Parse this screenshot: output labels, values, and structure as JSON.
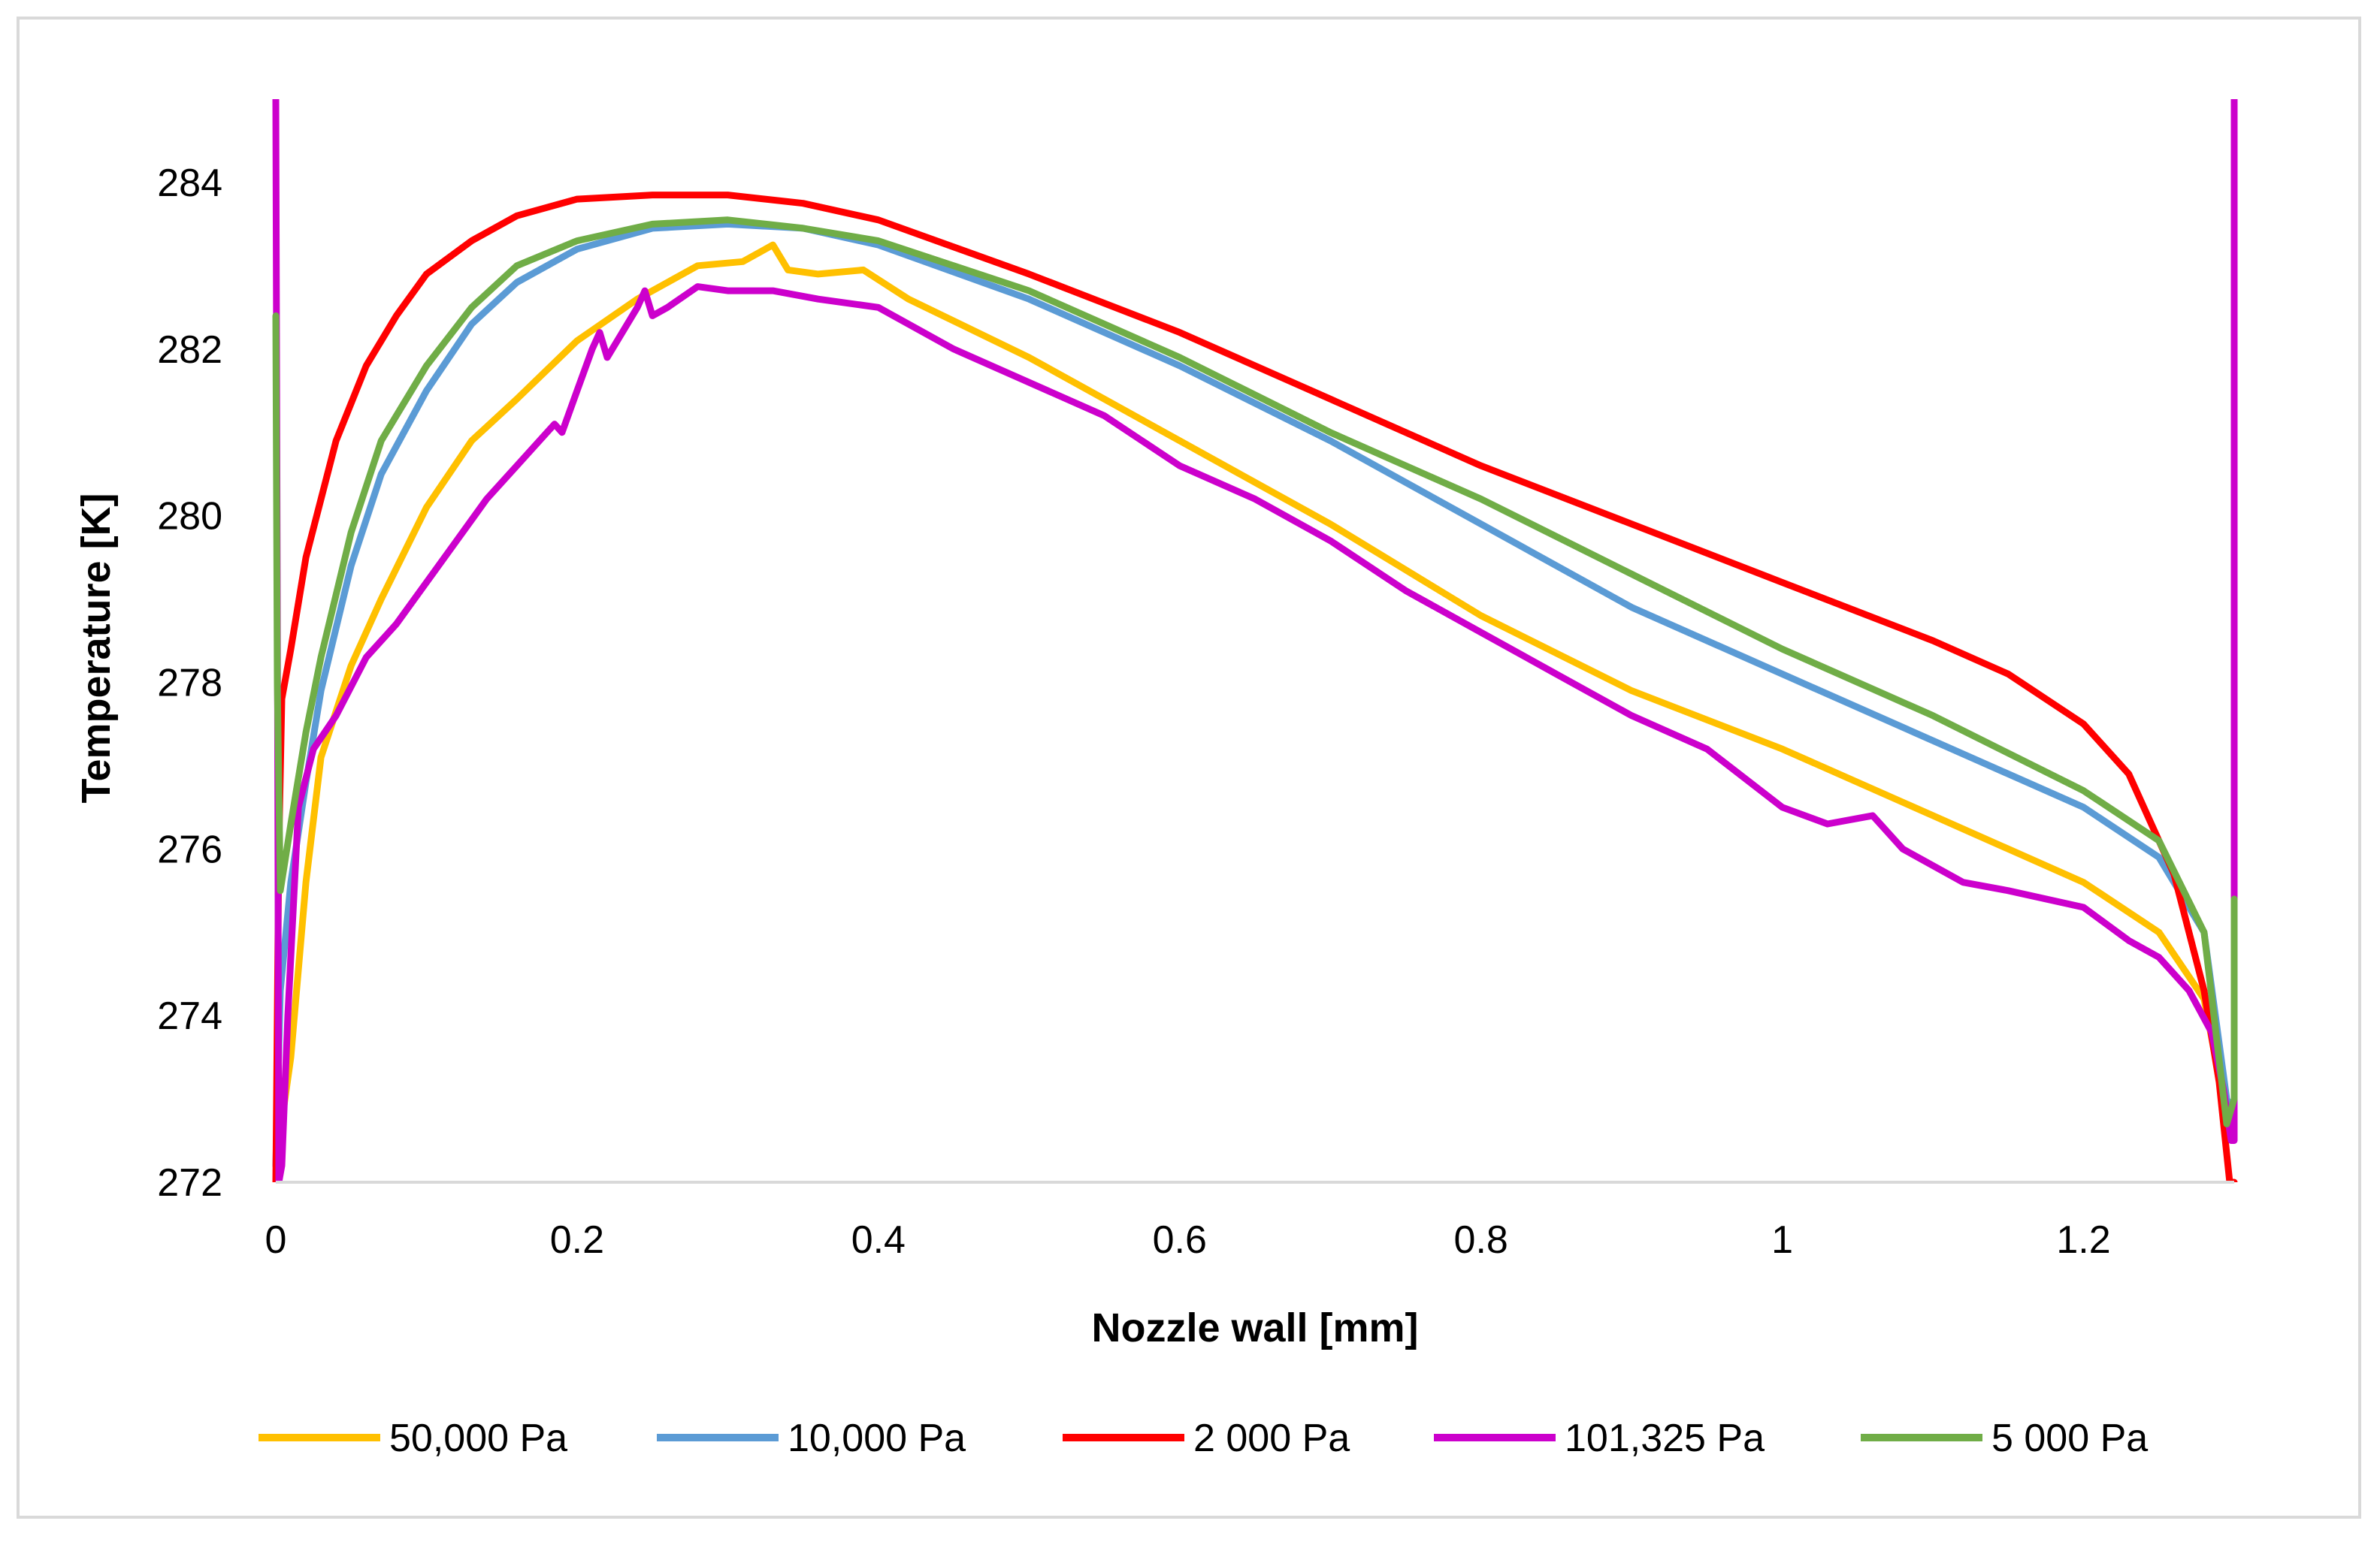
{
  "chart_data": {
    "type": "line",
    "title": "",
    "xlabel": "Nozzle wall [mm]",
    "ylabel": "Temperature [K]",
    "xlim": [
      0,
      1.3
    ],
    "ylim": [
      272,
      285
    ],
    "grid": false,
    "legend_position": "bottom",
    "x_ticks": [
      0,
      0.2,
      0.4,
      0.6,
      0.8,
      1.0,
      1.2
    ],
    "x_tick_labels": [
      "0",
      "0.2",
      "0.4",
      "0.6",
      "0.8",
      "1",
      "1.2"
    ],
    "y_ticks": [
      272,
      274,
      276,
      278,
      280,
      282,
      284
    ],
    "y_tick_labels": [
      "272",
      "274",
      "276",
      "278",
      "280",
      "282",
      "284"
    ],
    "series": [
      {
        "name": "50,000 Pa",
        "color": "#FFC000",
        "x": [
          0.0,
          0.003,
          0.01,
          0.02,
          0.03,
          0.05,
          0.07,
          0.1,
          0.13,
          0.16,
          0.2,
          0.24,
          0.28,
          0.31,
          0.33,
          0.34,
          0.36,
          0.39,
          0.42,
          0.5,
          0.6,
          0.7,
          0.8,
          0.9,
          1.0,
          1.1,
          1.2,
          1.25,
          1.28,
          1.295,
          1.3
        ],
        "y": [
          272.2,
          272.6,
          273.5,
          275.6,
          277.1,
          278.2,
          279.0,
          280.1,
          280.9,
          281.4,
          282.1,
          282.6,
          283.0,
          283.05,
          283.25,
          282.95,
          282.9,
          282.95,
          282.6,
          281.9,
          280.9,
          279.9,
          278.8,
          277.9,
          277.2,
          276.4,
          275.6,
          275.0,
          274.2,
          272.8,
          272.8
        ]
      },
      {
        "name": "10,000 Pa",
        "color": "#5B9BD5",
        "x": [
          0.0,
          0.003,
          0.01,
          0.02,
          0.03,
          0.05,
          0.07,
          0.1,
          0.13,
          0.16,
          0.2,
          0.25,
          0.3,
          0.35,
          0.4,
          0.5,
          0.6,
          0.7,
          0.8,
          0.9,
          1.0,
          1.1,
          1.2,
          1.25,
          1.28,
          1.295,
          1.3
        ],
        "y": [
          272.2,
          274.3,
          275.6,
          276.8,
          277.9,
          279.4,
          280.5,
          281.5,
          282.3,
          282.8,
          283.2,
          283.45,
          283.5,
          283.45,
          283.25,
          282.6,
          281.8,
          280.9,
          279.9,
          278.9,
          278.1,
          277.3,
          276.5,
          275.9,
          275.0,
          273.0,
          272.8
        ]
      },
      {
        "name": "2 000 Pa",
        "color": "#FF0000",
        "x": [
          0.0,
          0.002,
          0.004,
          0.01,
          0.02,
          0.04,
          0.06,
          0.08,
          0.1,
          0.13,
          0.16,
          0.2,
          0.25,
          0.3,
          0.35,
          0.4,
          0.5,
          0.6,
          0.7,
          0.8,
          0.9,
          1.0,
          1.1,
          1.15,
          1.2,
          1.23,
          1.26,
          1.28,
          1.29,
          1.297,
          1.3
        ],
        "y": [
          272.0,
          276.0,
          277.8,
          278.4,
          279.5,
          280.9,
          281.8,
          282.4,
          282.9,
          283.3,
          283.6,
          283.8,
          283.85,
          283.85,
          283.75,
          283.55,
          282.9,
          282.2,
          281.4,
          280.6,
          279.9,
          279.2,
          278.5,
          278.1,
          277.5,
          276.9,
          275.7,
          274.3,
          273.2,
          272.0,
          272.0
        ]
      },
      {
        "name": "101,325 Pa",
        "color": "#CC00CC",
        "x": [
          0.0,
          0.001,
          0.002,
          0.004,
          0.008,
          0.015,
          0.025,
          0.04,
          0.06,
          0.08,
          0.1,
          0.12,
          0.14,
          0.16,
          0.17,
          0.18,
          0.185,
          0.19,
          0.2,
          0.21,
          0.215,
          0.22,
          0.23,
          0.24,
          0.245,
          0.25,
          0.26,
          0.28,
          0.3,
          0.33,
          0.36,
          0.4,
          0.45,
          0.5,
          0.55,
          0.6,
          0.65,
          0.7,
          0.75,
          0.8,
          0.85,
          0.9,
          0.95,
          1.0,
          1.03,
          1.06,
          1.08,
          1.12,
          1.15,
          1.2,
          1.23,
          1.25,
          1.27,
          1.285,
          1.293,
          1.298,
          1.3,
          1.3
        ],
        "y": [
          285.0,
          279.0,
          272.0,
          272.2,
          274.0,
          276.5,
          277.2,
          277.6,
          278.3,
          278.7,
          279.2,
          279.7,
          280.2,
          280.6,
          280.8,
          281.0,
          281.1,
          281.0,
          281.5,
          282.0,
          282.2,
          281.9,
          282.2,
          282.5,
          282.7,
          282.4,
          282.5,
          282.75,
          282.7,
          282.7,
          282.6,
          282.5,
          282.0,
          281.6,
          281.2,
          280.6,
          280.2,
          279.7,
          279.1,
          278.6,
          278.1,
          277.6,
          277.2,
          276.5,
          276.3,
          276.4,
          276.0,
          275.6,
          275.5,
          275.3,
          274.9,
          274.7,
          274.3,
          273.8,
          273.1,
          272.5,
          272.5,
          285.0
        ]
      },
      {
        "name": "5 000 Pa",
        "color": "#70AD47",
        "x": [
          0.0,
          0.001,
          0.003,
          0.01,
          0.02,
          0.03,
          0.05,
          0.07,
          0.1,
          0.13,
          0.16,
          0.2,
          0.25,
          0.3,
          0.35,
          0.4,
          0.5,
          0.6,
          0.7,
          0.8,
          0.9,
          1.0,
          1.1,
          1.2,
          1.25,
          1.28,
          1.295,
          1.3,
          1.3
        ],
        "y": [
          282.4,
          278.0,
          275.5,
          276.3,
          277.4,
          278.3,
          279.8,
          280.9,
          281.8,
          282.5,
          283.0,
          283.3,
          283.5,
          283.55,
          283.45,
          283.3,
          282.7,
          281.9,
          281.0,
          280.2,
          279.3,
          278.4,
          277.6,
          276.7,
          276.1,
          275.0,
          272.7,
          273.0,
          275.4
        ]
      }
    ]
  }
}
